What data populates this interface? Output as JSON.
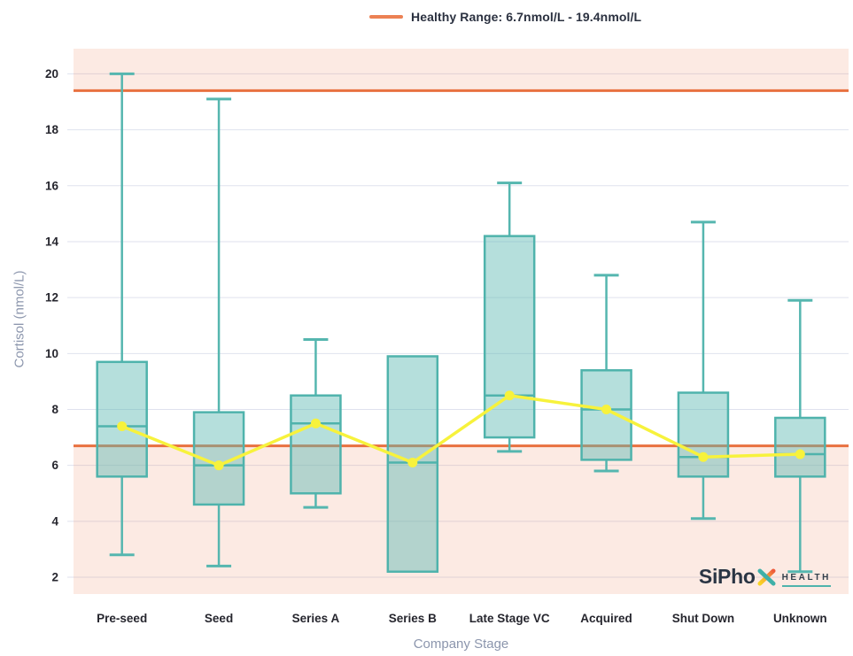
{
  "legend": {
    "label": "Healthy Range: 6.7nmol/L - 19.4nmol/L"
  },
  "chart_data": {
    "type": "box",
    "title": "",
    "xlabel": "Company Stage",
    "ylabel": "Cortisol (nmol/L)",
    "categories": [
      "Pre-seed",
      "Seed",
      "Series A",
      "Series B",
      "Late Stage VC",
      "Acquired",
      "Shut Down",
      "Unknown"
    ],
    "boxes": [
      {
        "category": "Pre-seed",
        "low": 2.8,
        "q1": 5.6,
        "median": 7.4,
        "q3": 9.7,
        "high": 20.0
      },
      {
        "category": "Seed",
        "low": 2.4,
        "q1": 4.6,
        "median": 6.0,
        "q3": 7.9,
        "high": 19.1
      },
      {
        "category": "Series A",
        "low": 4.5,
        "q1": 5.0,
        "median": 7.5,
        "q3": 8.5,
        "high": 10.5
      },
      {
        "category": "Series B",
        "low": null,
        "q1": 2.2,
        "median": 6.1,
        "q3": 9.9,
        "high": null
      },
      {
        "category": "Late Stage VC",
        "low": 6.5,
        "q1": 7.0,
        "median": 8.5,
        "q3": 14.2,
        "high": 16.1
      },
      {
        "category": "Acquired",
        "low": 5.8,
        "q1": 6.2,
        "median": 8.0,
        "q3": 9.4,
        "high": 12.8
      },
      {
        "category": "Shut Down",
        "low": 4.1,
        "q1": 5.6,
        "median": 6.3,
        "q3": 8.6,
        "high": 14.7
      },
      {
        "category": "Unknown",
        "low": 2.2,
        "q1": 5.6,
        "median": 6.4,
        "q3": 7.7,
        "high": 11.9
      }
    ],
    "median_line": {
      "name": "Median",
      "values": [
        7.4,
        6.0,
        7.5,
        6.1,
        8.5,
        8.0,
        6.3,
        6.4
      ]
    },
    "healthy_range": {
      "low": 6.7,
      "high": 19.4
    },
    "y_ticks": [
      2,
      4,
      6,
      8,
      10,
      12,
      14,
      16,
      18,
      20
    ],
    "ylim": [
      1.4,
      20.9
    ],
    "grid": true,
    "legend_position": "top-center"
  },
  "logo": {
    "brand": "SiPho",
    "x_icon": "x-mark",
    "suffix": "HEALTH"
  },
  "colors": {
    "box_stroke": "#4FB3AC",
    "box_fill_rgba": "rgba(92,184,178,0.45)",
    "whisker": "#55B6AF",
    "median_series_yellow": "#F7F23C",
    "reference_orange": "#E8713F",
    "legend_swatch_orange": "#EC8154",
    "out_of_range_band": "rgba(233,115,66,0.15)",
    "gridline": "#DFE2EE",
    "tick_text": "#26262E",
    "axis_title_text": "#8C96AD",
    "logo_navy": "#2A3544",
    "logo_teal": "#3FB0A8",
    "logo_yellow": "#F9D423",
    "logo_red": "#EE5A3A"
  }
}
